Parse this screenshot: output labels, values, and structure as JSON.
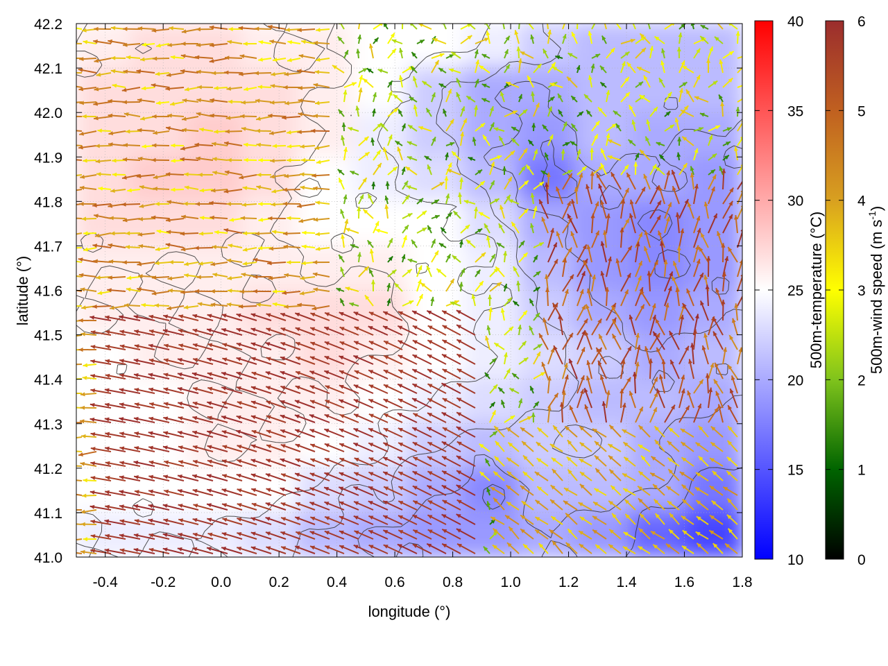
{
  "chart_data": {
    "type": "heatmap",
    "title": "",
    "xlabel": "longitude (°)",
    "ylabel": "latitude (°)",
    "xlim": [
      -0.5,
      1.8
    ],
    "ylim": [
      41.0,
      42.2
    ],
    "xticks": [
      -0.4,
      -0.2,
      0.0,
      0.2,
      0.4,
      0.6,
      0.8,
      1.0,
      1.2,
      1.4,
      1.6,
      1.8
    ],
    "xtick_labels": [
      "-0.4",
      "-0.2",
      "0.0",
      "0.2",
      "0.4",
      "0.6",
      "0.8",
      "1.0",
      "1.2",
      "1.4",
      "1.6",
      "1.8"
    ],
    "yticks": [
      41.0,
      41.1,
      41.2,
      41.3,
      41.4,
      41.5,
      41.6,
      41.7,
      41.8,
      41.9,
      42.0,
      42.1,
      42.2
    ],
    "ytick_labels": [
      "41.0",
      "41.1",
      "41.2",
      "41.3",
      "41.4",
      "41.5",
      "41.6",
      "41.7",
      "41.8",
      "41.9",
      "42.0",
      "42.1",
      "42.2"
    ],
    "grid": true,
    "temperature": {
      "label": "500m-temperature (°C)",
      "range": [
        10,
        40
      ],
      "ticks": [
        10,
        15,
        20,
        25,
        30,
        35,
        40
      ],
      "tick_labels": [
        "10",
        "15",
        "20",
        "25",
        "30",
        "35",
        "40"
      ],
      "colors": [
        "#0000ff",
        "#ffffff",
        "#ff0000"
      ],
      "field": [
        [
          26,
          27,
          27,
          26,
          26,
          25,
          25,
          24,
          22,
          21,
          21,
          21
        ],
        [
          27,
          27,
          27,
          27,
          26,
          25,
          22,
          20,
          20,
          21,
          21,
          21
        ],
        [
          27,
          27,
          28,
          27,
          26,
          24,
          22,
          20,
          19,
          21,
          20,
          20
        ],
        [
          27,
          28,
          28,
          27,
          25,
          24,
          23,
          21,
          17,
          20,
          20,
          19
        ],
        [
          27,
          27,
          27,
          26,
          25,
          25,
          25,
          23,
          20,
          19,
          18,
          19
        ],
        [
          26,
          26,
          26,
          26,
          26,
          26,
          25,
          24,
          21,
          19,
          18,
          19
        ],
        [
          26,
          26,
          26,
          27,
          27,
          27,
          25,
          24,
          22,
          20,
          19,
          20
        ],
        [
          25,
          26,
          26,
          26,
          27,
          26,
          25,
          24,
          23,
          22,
          20,
          21
        ],
        [
          25,
          25,
          26,
          26,
          26,
          25,
          24,
          23,
          22,
          21,
          21,
          20
        ],
        [
          25,
          25,
          26,
          26,
          25,
          24,
          22,
          21,
          22,
          22,
          20,
          19
        ],
        [
          25,
          25,
          25,
          25,
          23,
          22,
          20,
          18,
          21,
          21,
          20,
          17
        ],
        [
          24,
          24,
          24,
          23,
          21,
          20,
          19,
          19,
          20,
          19,
          16,
          14
        ]
      ]
    },
    "wind": {
      "label": "500m-wind speed (m s-1)",
      "label_main": "500m-wind speed (m s",
      "label_sup": "-1",
      "label_end": ")",
      "range": [
        0,
        6
      ],
      "ticks": [
        0,
        1,
        2,
        3,
        4,
        5,
        6
      ],
      "tick_labels": [
        "0",
        "1",
        "2",
        "3",
        "4",
        "5",
        "6"
      ],
      "colors": [
        "#000000",
        "#006400",
        "#7fc31c",
        "#ffff00",
        "#d8a020",
        "#c06020",
        "#9b2d2d"
      ]
    }
  }
}
